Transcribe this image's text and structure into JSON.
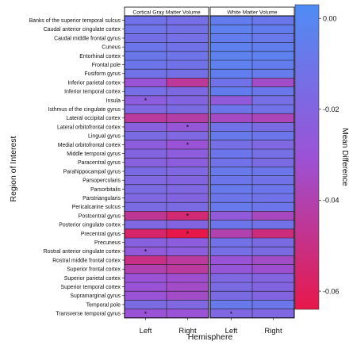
{
  "chart_data": {
    "type": "heatmap",
    "title": "",
    "xlabel": "Hemisphere",
    "ylabel": "Region of Interest",
    "colorbar_label": "Mean Difference",
    "colorbar_range": [
      -0.064,
      0.003
    ],
    "colorbar_ticks": [
      "0.00",
      "-0.02",
      "-0.04",
      "-0.06"
    ],
    "colorbar_tick_values": [
      0.0,
      -0.02,
      -0.04,
      -0.06
    ],
    "color_low": "#e8174a",
    "color_mid": "#9b52d6",
    "color_high": "#4f8cf5",
    "panels": [
      "Cortical Gray Matter Volume",
      "White Matter Volume"
    ],
    "x_categories": [
      "Left",
      "Right"
    ],
    "regions": [
      "Banks of the superior temporal sulcus",
      "Caudal anterior cingulate cortex",
      "Caudal middle frontal gyrus",
      "Cuneus",
      "Entorhinal cortex",
      "Frontal pole",
      "Fusiform gyrus",
      "Inferior parietal cortex",
      "Inferior temporal cortex",
      "Insula",
      "Isthmus of the cingulate gyrus",
      "Lateral occipital cortex",
      "Lateral orbitofrontal cortex",
      "Lingual gyrus",
      "Medial orbitofrontal cortex",
      "Middle temporal gyrus",
      "Paracentral gyrus",
      "Parahippocampal gyrus",
      "Parsopercularis",
      "Parsorbitalis",
      "Parstriangularis",
      "Pericalcarine sulcus",
      "Postcentral gyrus",
      "Posterior cingulate cortex",
      "Precentral gyrus",
      "Precuneus",
      "Rostral anterior cingulate cortex",
      "Rostral middle frontal cortex",
      "Superior frontal cortex",
      "Superior parietal cortex",
      "Superior temporal cortex",
      "Supramarginal gyrus",
      "Temporal pole",
      "Transverse temporal gyrus"
    ],
    "values": [
      [
        -0.012,
        -0.014,
        -0.006,
        -0.009
      ],
      [
        -0.011,
        -0.013,
        -0.004,
        -0.006
      ],
      [
        -0.013,
        -0.014,
        -0.006,
        -0.008
      ],
      [
        -0.01,
        -0.012,
        -0.004,
        -0.005
      ],
      [
        -0.009,
        -0.011,
        -0.003,
        -0.004
      ],
      [
        -0.01,
        -0.012,
        -0.004,
        -0.006
      ],
      [
        -0.012,
        -0.013,
        -0.005,
        -0.007
      ],
      [
        -0.03,
        -0.045,
        -0.012,
        -0.034
      ],
      [
        -0.014,
        -0.017,
        -0.006,
        -0.009
      ],
      [
        -0.024,
        -0.02,
        -0.026,
        -0.014
      ],
      [
        -0.018,
        -0.016,
        -0.01,
        -0.012
      ],
      [
        -0.044,
        -0.042,
        -0.035,
        -0.038
      ],
      [
        -0.022,
        -0.028,
        -0.012,
        -0.016
      ],
      [
        -0.016,
        -0.018,
        -0.008,
        -0.01
      ],
      [
        -0.024,
        -0.03,
        -0.014,
        -0.018
      ],
      [
        -0.02,
        -0.024,
        -0.01,
        -0.014
      ],
      [
        -0.022,
        -0.024,
        -0.012,
        -0.016
      ],
      [
        -0.016,
        -0.018,
        -0.008,
        -0.01
      ],
      [
        -0.018,
        -0.02,
        -0.01,
        -0.012
      ],
      [
        -0.016,
        -0.018,
        -0.008,
        -0.01
      ],
      [
        -0.018,
        -0.02,
        -0.01,
        -0.012
      ],
      [
        -0.016,
        -0.016,
        -0.008,
        -0.01
      ],
      [
        -0.046,
        -0.054,
        -0.026,
        -0.036
      ],
      [
        -0.018,
        -0.02,
        -0.01,
        -0.012
      ],
      [
        -0.056,
        -0.064,
        -0.04,
        -0.052
      ],
      [
        -0.022,
        -0.024,
        -0.012,
        -0.016
      ],
      [
        -0.026,
        -0.024,
        -0.014,
        -0.016
      ],
      [
        -0.05,
        -0.044,
        -0.03,
        -0.034
      ],
      [
        -0.04,
        -0.044,
        -0.028,
        -0.032
      ],
      [
        -0.03,
        -0.032,
        -0.018,
        -0.02
      ],
      [
        -0.03,
        -0.034,
        -0.016,
        -0.02
      ],
      [
        -0.03,
        -0.034,
        -0.016,
        -0.02
      ],
      [
        -0.016,
        -0.018,
        -0.008,
        -0.01
      ],
      [
        -0.03,
        -0.03,
        -0.018,
        -0.018
      ]
    ],
    "significant_marker": "*",
    "significant": [
      [
        9,
        0
      ],
      [
        12,
        1
      ],
      [
        14,
        1
      ],
      [
        22,
        1
      ],
      [
        24,
        1
      ],
      [
        26,
        0
      ],
      [
        33,
        0
      ],
      [
        33,
        2
      ]
    ]
  }
}
